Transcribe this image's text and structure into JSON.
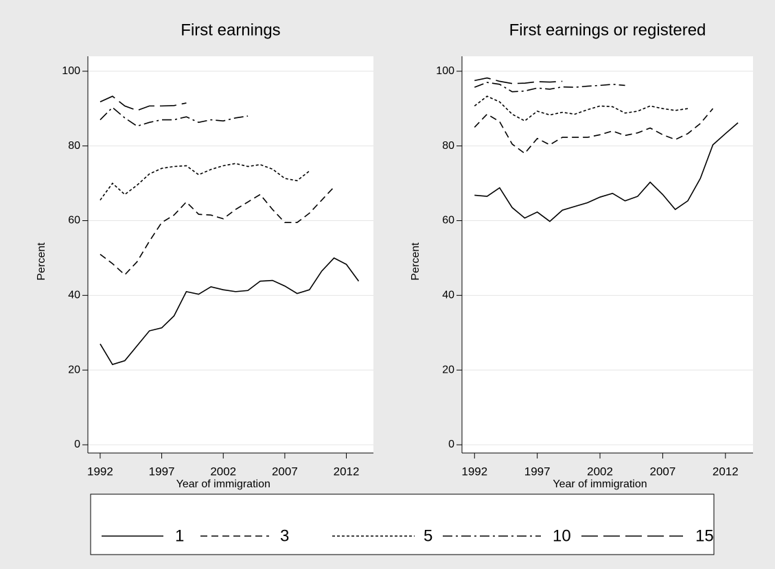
{
  "chart_data": [
    {
      "type": "line",
      "title": "First earnings",
      "xlabel": "Year of immigration",
      "ylabel": "Percent",
      "x": [
        1992,
        1993,
        1994,
        1995,
        1996,
        1997,
        1998,
        1999,
        2000,
        2001,
        2002,
        2003,
        2004,
        2005,
        2006,
        2007,
        2008,
        2009,
        2010,
        2011,
        2012,
        2013
      ],
      "xlim": [
        1991,
        2014.2
      ],
      "xticks": [
        1992,
        1997,
        2002,
        2007,
        2012
      ],
      "ylim": [
        -2.2,
        104
      ],
      "yticks": [
        0,
        20,
        40,
        60,
        80,
        100
      ],
      "grid": true,
      "series": [
        {
          "name": "1",
          "color": "#000000",
          "dash": "solid",
          "values": [
            27,
            21.5,
            22.5,
            26.5,
            30.5,
            31.3,
            34.5,
            41,
            40.3,
            42.3,
            41.5,
            41,
            41.3,
            43.8,
            44,
            42.5,
            40.5,
            41.5,
            46.5,
            50,
            48.3,
            43.8
          ]
        },
        {
          "name": "3",
          "color": "#000000",
          "dash": "dash",
          "values": [
            51,
            48.5,
            45.5,
            49,
            54.5,
            59.5,
            61.5,
            65,
            61.7,
            61.5,
            60.5,
            63,
            65,
            67,
            63,
            59.5,
            59.5,
            62,
            65.5,
            69,
            null,
            null
          ]
        },
        {
          "name": "5",
          "color": "#000000",
          "dash": "shortdash",
          "values": [
            65.5,
            70,
            67,
            69.5,
            72.5,
            74,
            74.5,
            74.7,
            72.3,
            73.7,
            74.7,
            75.3,
            74.5,
            75,
            73.8,
            71.3,
            70.7,
            73.3,
            null,
            null,
            null,
            null
          ]
        },
        {
          "name": "10",
          "color": "#000000",
          "dash": "dashdot",
          "values": [
            87,
            90.3,
            87.5,
            85.3,
            86.3,
            87,
            87,
            87.8,
            86.3,
            87,
            86.7,
            87.5,
            88,
            null,
            null,
            null,
            null,
            null,
            null,
            null,
            null,
            null
          ]
        },
        {
          "name": "15",
          "color": "#000000",
          "dash": "longdash",
          "values": [
            91.8,
            93.3,
            90.7,
            89.5,
            90.7,
            90.7,
            90.8,
            91.5,
            null,
            null,
            null,
            null,
            null,
            null,
            null,
            null,
            null,
            null,
            null,
            null,
            null,
            null
          ]
        }
      ]
    },
    {
      "type": "line",
      "title": "First earnings or registered",
      "xlabel": "Year of immigration",
      "ylabel": "Percent",
      "x": [
        1992,
        1993,
        1994,
        1995,
        1996,
        1997,
        1998,
        1999,
        2000,
        2001,
        2002,
        2003,
        2004,
        2005,
        2006,
        2007,
        2008,
        2009,
        2010,
        2011,
        2012,
        2013
      ],
      "xlim": [
        1991,
        2014.2
      ],
      "xticks": [
        1992,
        1997,
        2002,
        2007,
        2012
      ],
      "ylim": [
        -2.2,
        104
      ],
      "yticks": [
        0,
        20,
        40,
        60,
        80,
        100
      ],
      "grid": true,
      "series": [
        {
          "name": "1",
          "color": "#000000",
          "dash": "solid",
          "values": [
            66.8,
            66.5,
            68.8,
            63.5,
            60.7,
            62.3,
            59.8,
            62.8,
            63.8,
            64.8,
            66.3,
            67.3,
            65.3,
            66.5,
            70.3,
            67,
            63,
            65.3,
            71.3,
            80.3,
            83.3,
            86.2
          ]
        },
        {
          "name": "3",
          "color": "#000000",
          "dash": "dash",
          "values": [
            85,
            88.5,
            86.5,
            80.5,
            78,
            82,
            80.3,
            82.3,
            82.3,
            82.3,
            83,
            84,
            82.8,
            83.5,
            84.8,
            83,
            81.7,
            83.3,
            86,
            90,
            null,
            null
          ]
        },
        {
          "name": "5",
          "color": "#000000",
          "dash": "shortdash",
          "values": [
            90.7,
            93.3,
            91.8,
            88.5,
            86.7,
            89.3,
            88.3,
            89,
            88.5,
            89.7,
            90.7,
            90.5,
            88.8,
            89.3,
            90.7,
            90,
            89.5,
            90,
            null,
            null,
            null,
            null
          ]
        },
        {
          "name": "10",
          "color": "#000000",
          "dash": "dashdot",
          "values": [
            95.7,
            97,
            96.5,
            94.5,
            94.7,
            95.5,
            95.2,
            95.8,
            95.7,
            96,
            96.2,
            96.5,
            96.2,
            null,
            null,
            null,
            null,
            null,
            null,
            null,
            null,
            null
          ]
        },
        {
          "name": "15",
          "color": "#000000",
          "dash": "longdash",
          "values": [
            97.5,
            98.2,
            97.3,
            96.7,
            96.8,
            97.2,
            97.1,
            97.3,
            null,
            null,
            null,
            null,
            null,
            null,
            null,
            null,
            null,
            null,
            null,
            null,
            null,
            null
          ]
        }
      ]
    }
  ]
}
